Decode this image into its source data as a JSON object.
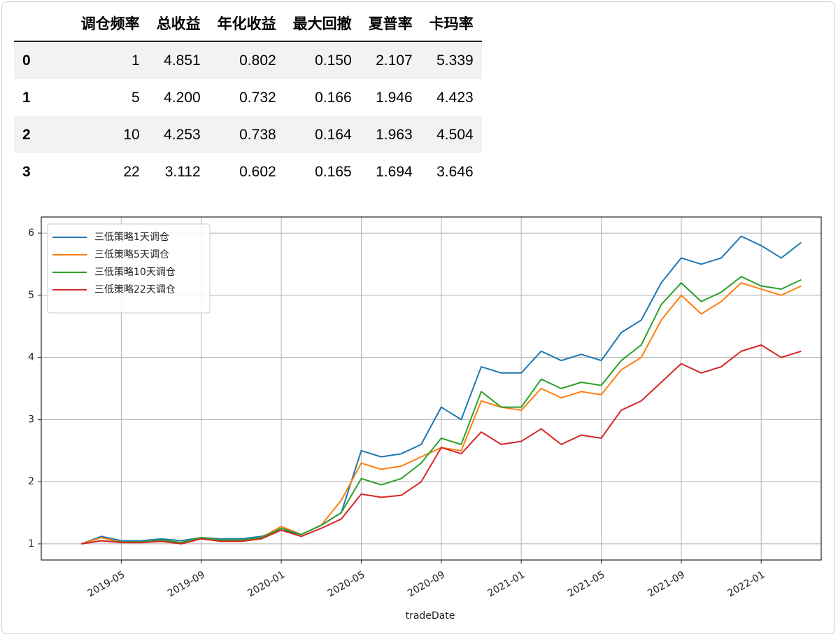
{
  "table": {
    "columns": [
      "调仓频率",
      "总收益",
      "年化收益",
      "最大回撤",
      "夏普率",
      "卡玛率"
    ],
    "rows": [
      {
        "index": "0",
        "cells": [
          "1",
          "4.851",
          "0.802",
          "0.150",
          "2.107",
          "5.339"
        ]
      },
      {
        "index": "1",
        "cells": [
          "5",
          "4.200",
          "0.732",
          "0.166",
          "1.946",
          "4.423"
        ]
      },
      {
        "index": "2",
        "cells": [
          "10",
          "4.253",
          "0.738",
          "0.164",
          "1.963",
          "4.504"
        ]
      },
      {
        "index": "3",
        "cells": [
          "22",
          "3.112",
          "0.602",
          "0.165",
          "1.694",
          "3.646"
        ]
      }
    ]
  },
  "chart_data": {
    "type": "line",
    "x_label": "tradeDate",
    "x": [
      "2019-03",
      "2019-04",
      "2019-05",
      "2019-06",
      "2019-07",
      "2019-08",
      "2019-09",
      "2019-10",
      "2019-11",
      "2019-12",
      "2020-01",
      "2020-02",
      "2020-03",
      "2020-04",
      "2020-05",
      "2020-06",
      "2020-07",
      "2020-08",
      "2020-09",
      "2020-10",
      "2020-11",
      "2020-12",
      "2021-01",
      "2021-02",
      "2021-03",
      "2021-04",
      "2021-05",
      "2021-06",
      "2021-07",
      "2021-08",
      "2021-09",
      "2021-10",
      "2021-11",
      "2021-12",
      "2022-01",
      "2022-02",
      "2022-03"
    ],
    "series": [
      {
        "name": "三低策略1天调仓",
        "color": "#1f77b4",
        "values": [
          1.0,
          1.12,
          1.05,
          1.05,
          1.08,
          1.05,
          1.1,
          1.08,
          1.08,
          1.12,
          1.22,
          1.15,
          1.3,
          1.5,
          2.5,
          2.4,
          2.45,
          2.6,
          3.2,
          3.0,
          3.85,
          3.75,
          3.75,
          4.1,
          3.95,
          4.05,
          3.95,
          4.4,
          4.6,
          5.2,
          5.6,
          5.5,
          5.6,
          5.95,
          5.8,
          5.6,
          5.85
        ]
      },
      {
        "name": "三低策略5天调仓",
        "color": "#ff7f0e",
        "values": [
          1.0,
          1.1,
          1.03,
          1.03,
          1.06,
          1.02,
          1.1,
          1.06,
          1.06,
          1.1,
          1.28,
          1.15,
          1.3,
          1.7,
          2.3,
          2.2,
          2.25,
          2.4,
          2.55,
          2.5,
          3.3,
          3.2,
          3.15,
          3.5,
          3.35,
          3.45,
          3.4,
          3.8,
          4.0,
          4.6,
          5.0,
          4.7,
          4.9,
          5.2,
          5.1,
          5.0,
          5.15
        ]
      },
      {
        "name": "三低策略10天调仓",
        "color": "#2ca02c",
        "values": [
          1.0,
          1.05,
          1.03,
          1.03,
          1.06,
          1.02,
          1.1,
          1.06,
          1.06,
          1.1,
          1.25,
          1.15,
          1.3,
          1.5,
          2.05,
          1.95,
          2.05,
          2.3,
          2.7,
          2.6,
          3.45,
          3.2,
          3.2,
          3.65,
          3.5,
          3.6,
          3.55,
          3.95,
          4.2,
          4.85,
          5.2,
          4.9,
          5.05,
          5.3,
          5.15,
          5.1,
          5.25
        ]
      },
      {
        "name": "三低策略22天调仓",
        "color": "#d62728",
        "values": [
          1.0,
          1.05,
          1.02,
          1.02,
          1.04,
          1.0,
          1.08,
          1.04,
          1.04,
          1.08,
          1.22,
          1.12,
          1.25,
          1.4,
          1.8,
          1.75,
          1.78,
          2.0,
          2.55,
          2.45,
          2.8,
          2.6,
          2.65,
          2.85,
          2.6,
          2.75,
          2.7,
          3.15,
          3.3,
          3.6,
          3.9,
          3.75,
          3.85,
          4.1,
          4.2,
          4.0,
          4.1
        ]
      }
    ],
    "xlim": [
      "2019-01",
      "2022-04"
    ],
    "xticks": [
      "2019-05",
      "2019-09",
      "2020-01",
      "2020-05",
      "2020-09",
      "2021-01",
      "2021-05",
      "2021-09",
      "2022-01"
    ],
    "ylim": [
      0.74,
      6.26
    ],
    "yticks": [
      1,
      2,
      3,
      4,
      5,
      6
    ],
    "grid": true,
    "legend_position": "upper-left"
  }
}
